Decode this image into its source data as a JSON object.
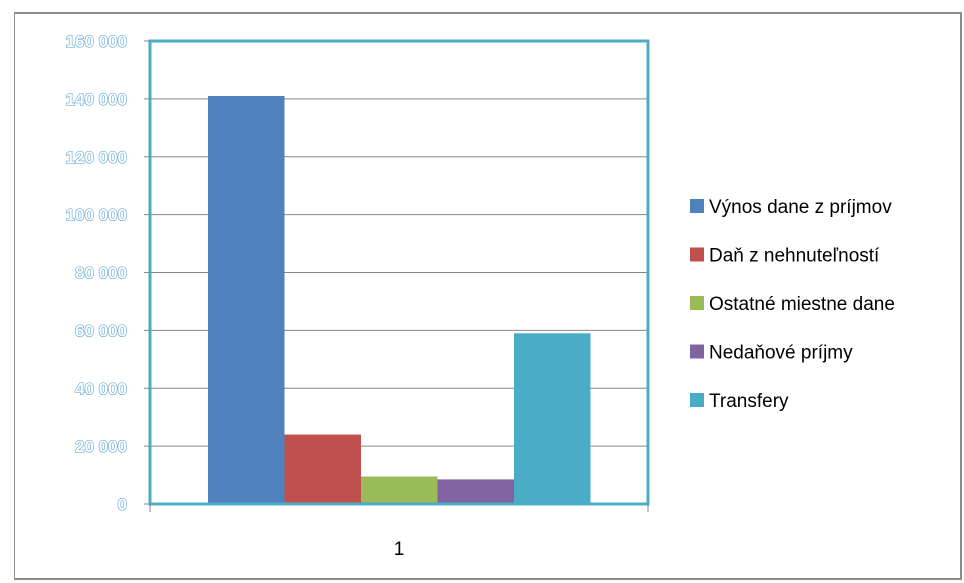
{
  "chart_data": {
    "type": "bar",
    "categories": [
      "1"
    ],
    "series": [
      {
        "name": "Výnos dane z príjmov",
        "values": [
          141000
        ],
        "color": "#4f81bd"
      },
      {
        "name": "Daň z nehnuteľností",
        "values": [
          24000
        ],
        "color": "#c0504d"
      },
      {
        "name": "Ostatné miestne dane",
        "values": [
          9500
        ],
        "color": "#9bbb59"
      },
      {
        "name": "Nedaňové príjmy",
        "values": [
          8500
        ],
        "color": "#8064a2"
      },
      {
        "name": "Transfery",
        "values": [
          59000
        ],
        "color": "#4bacc6"
      }
    ],
    "ylim": [
      0,
      160000
    ],
    "yticks": [
      {
        "value": 0,
        "label": "0"
      },
      {
        "value": 20000,
        "label": "20 000"
      },
      {
        "value": 40000,
        "label": "40 000"
      },
      {
        "value": 60000,
        "label": "60 000"
      },
      {
        "value": 80000,
        "label": "80 000"
      },
      {
        "value": 100000,
        "label": "100 000"
      },
      {
        "value": 120000,
        "label": "120 000"
      },
      {
        "value": 140000,
        "label": "140 000"
      },
      {
        "value": 160000,
        "label": "160 000"
      }
    ],
    "grid": true,
    "legend_position": "right",
    "plot_border_color": "#4bacc6",
    "title": "",
    "xlabel": "",
    "ylabel": ""
  }
}
